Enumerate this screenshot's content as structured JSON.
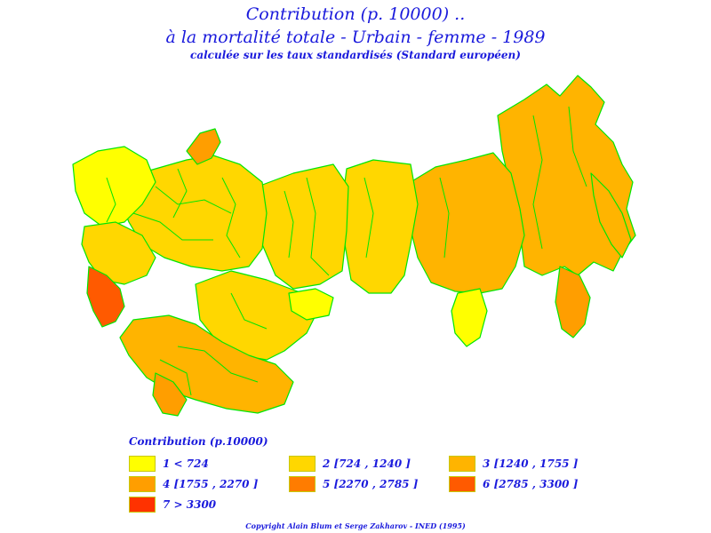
{
  "header": {
    "title_line1": "Contribution (p. 10000) ..",
    "title_line2": "à la mortalité totale - Urbain - femme - 1989",
    "subtitle": "calculée sur les taux standardisés (Standard européen)"
  },
  "legend": {
    "title": "Contribution (p.10000)",
    "classes": [
      {
        "label": "1 < 724",
        "color": "#ffff00"
      },
      {
        "label": "2 [724 , 1240 ]",
        "color": "#ffd700"
      },
      {
        "label": "3 [1240 , 1755 ]",
        "color": "#ffb400"
      },
      {
        "label": "4 [1755 , 2270 ]",
        "color": "#ff9e00"
      },
      {
        "label": "5 [2270 , 2785 ]",
        "color": "#ff7c00"
      },
      {
        "label": "6 [2785 , 3300 ]",
        "color": "#ff5a00"
      },
      {
        "label": "7 > 3300",
        "color": "#ff3200"
      }
    ]
  },
  "map": {
    "border_color": "#00e600",
    "regions": [
      {
        "name": "far-east",
        "class": 3
      },
      {
        "name": "kamchatka",
        "class": 3
      },
      {
        "name": "siberia-central",
        "class": 3
      },
      {
        "name": "siberia-west",
        "class": 2
      },
      {
        "name": "ural",
        "class": 2
      },
      {
        "name": "kazakhstan",
        "class": 2
      },
      {
        "name": "european-russia",
        "class": 2
      },
      {
        "name": "baltic-north-west",
        "class": 1
      },
      {
        "name": "ukraine-belarus",
        "class": 2
      },
      {
        "name": "central-asia",
        "class": 3
      },
      {
        "name": "caucasus",
        "class": 6
      },
      {
        "name": "kola",
        "class": 4
      },
      {
        "name": "yakutia-south",
        "class": 1
      },
      {
        "name": "kazakh-north",
        "class": 1
      },
      {
        "name": "turkmen-tajik",
        "class": 4
      },
      {
        "name": "primorye",
        "class": 4
      }
    ]
  },
  "footer": {
    "copyright": "Copyright Alain Blum et Serge Zakharov - INED (1995)"
  }
}
